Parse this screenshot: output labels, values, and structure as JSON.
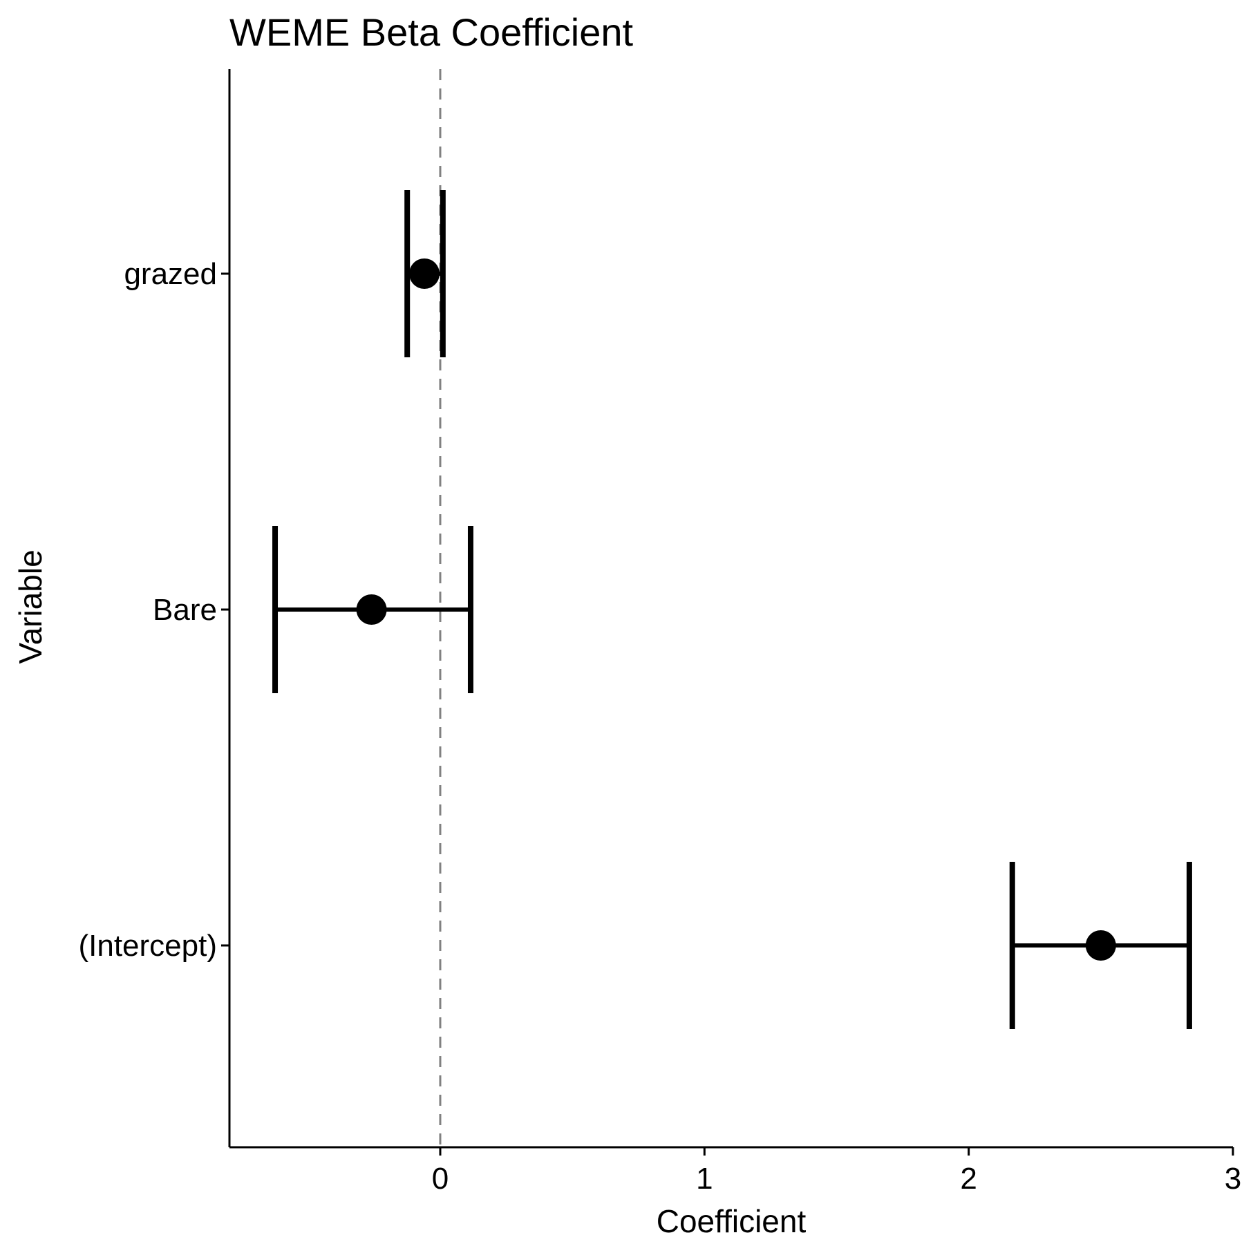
{
  "chart_data": {
    "type": "errorbar",
    "title": "WEME Beta Coefficient",
    "xlabel": "Coefficient",
    "ylabel": "Variable",
    "xlim": [
      -0.8,
      3.0
    ],
    "xticks": [
      "0",
      "1",
      "2",
      "3"
    ],
    "grid": false,
    "reference_line": {
      "x": 0,
      "style": "dashed",
      "color": "#808080"
    },
    "categories": [
      "grazed",
      "Bare",
      "(Intercept)"
    ],
    "points": [
      {
        "variable": "grazed",
        "estimate": -0.06,
        "lower": -0.125,
        "upper": 0.01
      },
      {
        "variable": "Bare",
        "estimate": -0.26,
        "lower": -0.625,
        "upper": 0.115
      },
      {
        "variable": "(Intercept)",
        "estimate": 2.5,
        "lower": 2.165,
        "upper": 2.835
      }
    ],
    "colors": {
      "marks": "#000000",
      "reference": "#808080"
    }
  }
}
